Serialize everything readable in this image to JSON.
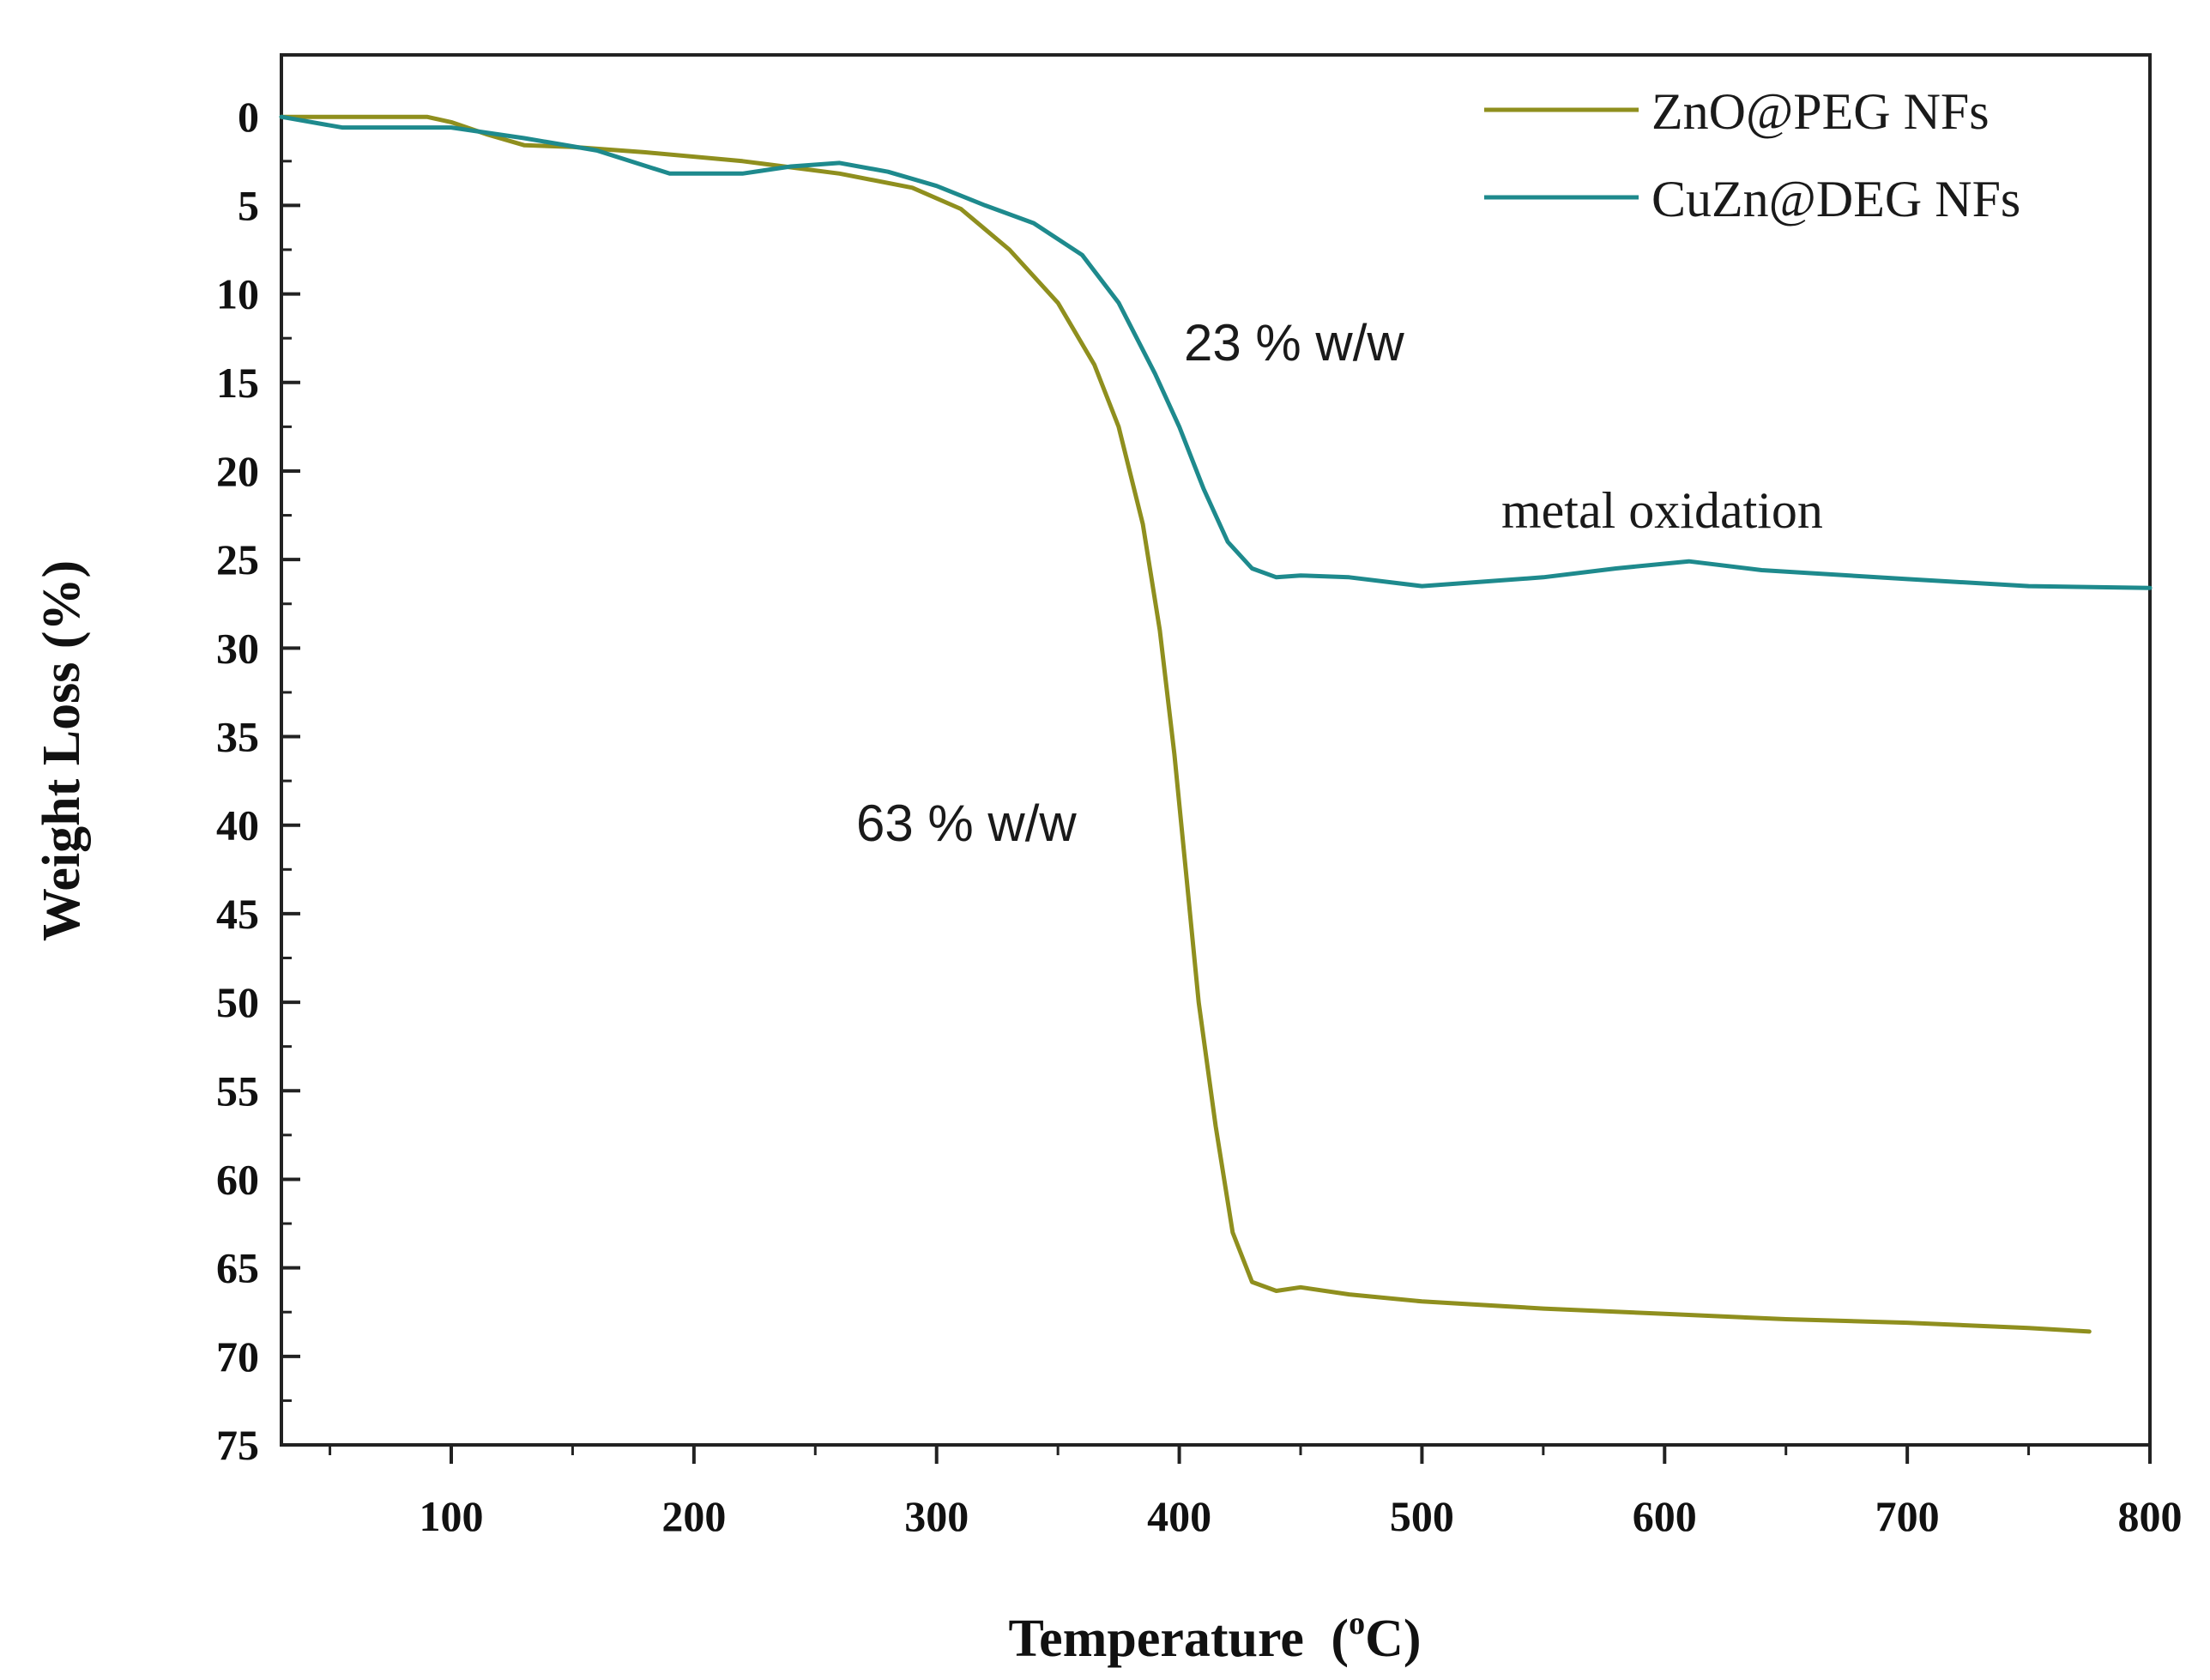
{
  "chart_data": {
    "type": "line",
    "title": "",
    "xlabel": "Temperature",
    "xlabel_unit_prefix": "(",
    "xlabel_unit_sup": "o",
    "xlabel_unit_suffix": "C)",
    "ylabel": "Weight Loss (%)",
    "xlim": [
      30,
      800
    ],
    "ylim": [
      75,
      -3.5
    ],
    "y_inverted": true,
    "xticks": [
      100,
      200,
      300,
      400,
      500,
      600,
      700,
      800
    ],
    "xtick_labels": [
      "100",
      "200",
      "300",
      "400",
      "500",
      "600",
      "700",
      "800"
    ],
    "yticks": [
      0,
      5,
      10,
      15,
      20,
      25,
      30,
      35,
      40,
      45,
      50,
      55,
      60,
      65,
      70,
      75
    ],
    "ytick_labels": [
      "0",
      "5",
      "10",
      "15",
      "20",
      "25",
      "30",
      "35",
      "40",
      "45",
      "50",
      "55",
      "60",
      "65",
      "70",
      "75"
    ],
    "grid": false,
    "legend_position": "top-right",
    "series": [
      {
        "name": "ZnO@PEG NFs",
        "color": "#8f8f1e",
        "x": [
          30,
          50,
          70,
          90,
          100,
          115,
          130,
          150,
          180,
          220,
          260,
          290,
          310,
          330,
          350,
          365,
          375,
          385,
          392,
          398,
          403,
          408,
          415,
          422,
          430,
          440,
          450,
          470,
          500,
          550,
          600,
          650,
          700,
          750,
          775
        ],
        "y": [
          0,
          0,
          0,
          0,
          0.3,
          1,
          1.6,
          1.7,
          2,
          2.5,
          3.2,
          4,
          5.2,
          7.5,
          10.5,
          14,
          17.5,
          23,
          29,
          36,
          43,
          50,
          57,
          63,
          65.8,
          66.3,
          66.1,
          66.5,
          66.9,
          67.3,
          67.6,
          67.9,
          68.1,
          68.4,
          68.6
        ]
      },
      {
        "name": "CuZn@DEG NFs",
        "color": "#1e8a8d",
        "x": [
          30,
          55,
          100,
          130,
          160,
          190,
          220,
          240,
          260,
          280,
          300,
          320,
          340,
          360,
          375,
          390,
          400,
          410,
          420,
          430,
          440,
          450,
          470,
          500,
          550,
          580,
          610,
          640,
          700,
          750,
          800
        ],
        "y": [
          0,
          0.6,
          0.6,
          1.2,
          1.9,
          3.2,
          3.2,
          2.8,
          2.6,
          3.1,
          3.9,
          5.0,
          6.0,
          7.8,
          10.5,
          14.5,
          17.5,
          21,
          24,
          25.5,
          26,
          25.9,
          26,
          26.5,
          26,
          25.5,
          25.1,
          25.6,
          26.1,
          26.5,
          26.6
        ]
      }
    ],
    "annotations": [
      {
        "text": "23 % w/w"
      },
      {
        "text": "metal oxidation"
      },
      {
        "text": "63 % w/w"
      }
    ]
  }
}
